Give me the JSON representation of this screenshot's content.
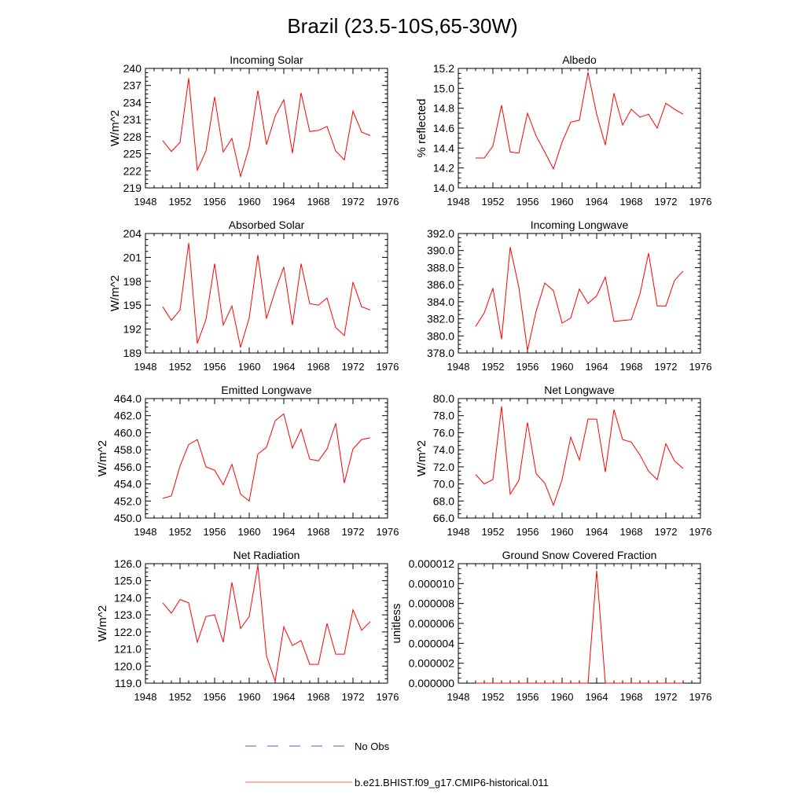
{
  "title": "Brazil (23.5-10S,65-30W)",
  "legend": {
    "obs_label": "No Obs",
    "model_label": "b.e21.BHIST.f09_g17.CMIP6-historical.011"
  },
  "colors": {
    "model": "#ff0000",
    "obs": "#5a5ac8"
  },
  "chart_data": [
    {
      "type": "line",
      "title": "Incoming Solar",
      "xlabel": "",
      "ylabel": "W/m^2",
      "xlim": [
        1948,
        1976
      ],
      "ylim": [
        219,
        240
      ],
      "xticks": [
        1948,
        1952,
        1956,
        1960,
        1964,
        1968,
        1972,
        1976
      ],
      "yticks": [
        219,
        222,
        225,
        228,
        231,
        234,
        237,
        240
      ],
      "ytick_labels": [
        "219",
        "222",
        "225",
        "228",
        "231",
        "234",
        "237",
        "240"
      ],
      "series": [
        {
          "name": "b.e21.BHIST.f09_g17.CMIP6-historical.011",
          "x": [
            1950,
            1951,
            1952,
            1953,
            1954,
            1955,
            1956,
            1957,
            1958,
            1959,
            1960,
            1961,
            1962,
            1963,
            1964,
            1965,
            1966,
            1967,
            1968,
            1969,
            1970,
            1971,
            1972,
            1973,
            1974
          ],
          "values": [
            227.3,
            225.4,
            227.0,
            238.3,
            222.1,
            225.5,
            235.0,
            225.3,
            227.7,
            221.0,
            226.2,
            236.1,
            226.6,
            231.6,
            234.5,
            225.1,
            235.7,
            228.9,
            229.1,
            229.8,
            225.5,
            223.9,
            232.5,
            228.8,
            228.2
          ]
        }
      ]
    },
    {
      "type": "line",
      "title": "Albedo",
      "xlabel": "",
      "ylabel": "% reflected",
      "xlim": [
        1948,
        1976
      ],
      "ylim": [
        14.0,
        15.2
      ],
      "xticks": [
        1948,
        1952,
        1956,
        1960,
        1964,
        1968,
        1972,
        1976
      ],
      "yticks": [
        14.0,
        14.2,
        14.4,
        14.6,
        14.8,
        15.0,
        15.2
      ],
      "ytick_labels": [
        "14.0",
        "14.2",
        "14.4",
        "14.6",
        "14.8",
        "15.0",
        "15.2"
      ],
      "series": [
        {
          "name": "b.e21.BHIST.f09_g17.CMIP6-historical.011",
          "x": [
            1950,
            1951,
            1952,
            1953,
            1954,
            1955,
            1956,
            1957,
            1958,
            1959,
            1960,
            1961,
            1962,
            1963,
            1964,
            1965,
            1966,
            1967,
            1968,
            1969,
            1970,
            1971,
            1972,
            1973,
            1974
          ],
          "values": [
            14.3,
            14.3,
            14.42,
            14.83,
            14.36,
            14.35,
            14.75,
            14.52,
            14.36,
            14.19,
            14.46,
            14.66,
            14.68,
            15.16,
            14.74,
            14.43,
            14.95,
            14.63,
            14.79,
            14.71,
            14.74,
            14.6,
            14.85,
            14.79,
            14.74
          ]
        }
      ]
    },
    {
      "type": "line",
      "title": "Absorbed Solar",
      "xlabel": "",
      "ylabel": "W/m^2",
      "xlim": [
        1948,
        1976
      ],
      "ylim": [
        189,
        204
      ],
      "xticks": [
        1948,
        1952,
        1956,
        1960,
        1964,
        1968,
        1972,
        1976
      ],
      "yticks": [
        189,
        192,
        195,
        198,
        201,
        204
      ],
      "ytick_labels": [
        "189",
        "192",
        "195",
        "198",
        "201",
        "204"
      ],
      "series": [
        {
          "name": "b.e21.BHIST.f09_g17.CMIP6-historical.011",
          "x": [
            1950,
            1951,
            1952,
            1953,
            1954,
            1955,
            1956,
            1957,
            1958,
            1959,
            1960,
            1961,
            1962,
            1963,
            1964,
            1965,
            1966,
            1967,
            1968,
            1969,
            1970,
            1971,
            1972,
            1973,
            1974
          ],
          "values": [
            194.8,
            193.1,
            194.4,
            202.8,
            190.2,
            193.2,
            200.2,
            192.5,
            194.9,
            189.7,
            193.4,
            201.3,
            193.3,
            196.8,
            199.8,
            192.5,
            200.2,
            195.2,
            195.0,
            195.9,
            192.2,
            191.2,
            197.9,
            194.8,
            194.4
          ]
        }
      ]
    },
    {
      "type": "line",
      "title": "Incoming Longwave",
      "xlabel": "",
      "ylabel": "",
      "xlim": [
        1948,
        1976
      ],
      "ylim": [
        378.0,
        392.0
      ],
      "xticks": [
        1948,
        1952,
        1956,
        1960,
        1964,
        1968,
        1972,
        1976
      ],
      "yticks": [
        378,
        380,
        382,
        384,
        386,
        388,
        390,
        392
      ],
      "ytick_labels": [
        "378.0",
        "380.0",
        "382.0",
        "384.0",
        "386.0",
        "388.0",
        "390.0",
        "392.0"
      ],
      "series": [
        {
          "name": "b.e21.BHIST.f09_g17.CMIP6-historical.011",
          "x": [
            1950,
            1951,
            1952,
            1953,
            1954,
            1955,
            1956,
            1957,
            1958,
            1959,
            1960,
            1961,
            1962,
            1963,
            1964,
            1965,
            1966,
            1967,
            1968,
            1969,
            1970,
            1971,
            1972,
            1973,
            1974
          ],
          "values": [
            381.1,
            382.7,
            385.6,
            379.6,
            390.4,
            385.7,
            378.3,
            382.9,
            386.2,
            385.3,
            381.5,
            382.1,
            385.5,
            383.8,
            384.7,
            386.9,
            381.7,
            381.8,
            381.9,
            384.9,
            389.7,
            383.5,
            383.5,
            386.5,
            387.6
          ]
        }
      ]
    },
    {
      "type": "line",
      "title": "Emitted Longwave",
      "xlabel": "",
      "ylabel": "W/m^2",
      "xlim": [
        1948,
        1976
      ],
      "ylim": [
        450.0,
        464.0
      ],
      "xticks": [
        1948,
        1952,
        1956,
        1960,
        1964,
        1968,
        1972,
        1976
      ],
      "yticks": [
        450,
        452,
        454,
        456,
        458,
        460,
        462,
        464
      ],
      "ytick_labels": [
        "450.0",
        "452.0",
        "454.0",
        "456.0",
        "458.0",
        "460.0",
        "462.0",
        "464.0"
      ],
      "series": [
        {
          "name": "b.e21.BHIST.f09_g17.CMIP6-historical.011",
          "x": [
            1950,
            1951,
            1952,
            1953,
            1954,
            1955,
            1956,
            1957,
            1958,
            1959,
            1960,
            1961,
            1962,
            1963,
            1964,
            1965,
            1966,
            1967,
            1968,
            1969,
            1970,
            1971,
            1972,
            1973,
            1974
          ],
          "values": [
            452.3,
            452.6,
            456.1,
            458.6,
            459.2,
            456.0,
            455.6,
            453.9,
            456.3,
            452.8,
            452.0,
            457.5,
            458.3,
            461.4,
            462.2,
            458.2,
            460.4,
            456.9,
            456.7,
            458.1,
            461.1,
            454.1,
            458.1,
            459.2,
            459.4
          ]
        }
      ]
    },
    {
      "type": "line",
      "title": "Net Longwave",
      "xlabel": "",
      "ylabel": "W/m^2",
      "xlim": [
        1948,
        1976
      ],
      "ylim": [
        66.0,
        80.0
      ],
      "xticks": [
        1948,
        1952,
        1956,
        1960,
        1964,
        1968,
        1972,
        1976
      ],
      "yticks": [
        66,
        68,
        70,
        72,
        74,
        76,
        78,
        80
      ],
      "ytick_labels": [
        "66.0",
        "68.0",
        "70.0",
        "72.0",
        "74.0",
        "76.0",
        "78.0",
        "80.0"
      ],
      "series": [
        {
          "name": "b.e21.BHIST.f09_g17.CMIP6-historical.011",
          "x": [
            1950,
            1951,
            1952,
            1953,
            1954,
            1955,
            1956,
            1957,
            1958,
            1959,
            1960,
            1961,
            1962,
            1963,
            1964,
            1965,
            1966,
            1967,
            1968,
            1969,
            1970,
            1971,
            1972,
            1973,
            1974
          ],
          "values": [
            71.1,
            70.0,
            70.5,
            79.1,
            68.8,
            70.4,
            77.2,
            71.2,
            70.1,
            67.5,
            70.5,
            75.5,
            72.8,
            77.6,
            77.6,
            71.4,
            78.7,
            75.2,
            74.9,
            73.4,
            71.5,
            70.5,
            74.7,
            72.7,
            71.8
          ]
        }
      ]
    },
    {
      "type": "line",
      "title": "Net Radiation",
      "xlabel": "",
      "ylabel": "W/m^2",
      "xlim": [
        1948,
        1976
      ],
      "ylim": [
        119.0,
        126.0
      ],
      "xticks": [
        1948,
        1952,
        1956,
        1960,
        1964,
        1968,
        1972,
        1976
      ],
      "yticks": [
        119,
        120,
        121,
        122,
        123,
        124,
        125,
        126
      ],
      "ytick_labels": [
        "119.0",
        "120.0",
        "121.0",
        "122.0",
        "123.0",
        "124.0",
        "125.0",
        "126.0"
      ],
      "series": [
        {
          "name": "b.e21.BHIST.f09_g17.CMIP6-historical.011",
          "x": [
            1950,
            1951,
            1952,
            1953,
            1954,
            1955,
            1956,
            1957,
            1958,
            1959,
            1960,
            1961,
            1962,
            1963,
            1964,
            1965,
            1966,
            1967,
            1968,
            1969,
            1970,
            1971,
            1972,
            1973,
            1974
          ],
          "values": [
            123.7,
            123.1,
            123.9,
            123.7,
            121.4,
            122.9,
            123.0,
            121.4,
            124.9,
            122.2,
            122.9,
            125.9,
            120.6,
            119.1,
            122.3,
            121.2,
            121.5,
            120.1,
            120.1,
            122.5,
            120.7,
            120.7,
            123.3,
            122.1,
            122.6
          ]
        }
      ]
    },
    {
      "type": "line",
      "title": "Ground Snow Covered Fraction",
      "xlabel": "",
      "ylabel": "unitless",
      "xlim": [
        1948,
        1976
      ],
      "ylim": [
        0,
        1.2e-05
      ],
      "xticks": [
        1948,
        1952,
        1956,
        1960,
        1964,
        1968,
        1972,
        1976
      ],
      "yticks": [
        0,
        2e-06,
        4e-06,
        6e-06,
        8e-06,
        1e-05,
        1.2e-05
      ],
      "ytick_labels": [
        "0.000000",
        "0.000002",
        "0.000004",
        "0.000006",
        "0.000008",
        "0.000010",
        "0.000012"
      ],
      "series": [
        {
          "name": "b.e21.BHIST.f09_g17.CMIP6-historical.011",
          "x": [
            1950,
            1951,
            1952,
            1953,
            1954,
            1955,
            1956,
            1957,
            1958,
            1959,
            1960,
            1961,
            1962,
            1963,
            1964,
            1965,
            1966,
            1967,
            1968,
            1969,
            1970,
            1971,
            1972,
            1973,
            1974
          ],
          "values": [
            0,
            0,
            0,
            0,
            0,
            0,
            0,
            0,
            0,
            0,
            0,
            0,
            0,
            0,
            1.13e-05,
            0,
            0,
            0,
            0,
            0,
            0,
            0,
            0,
            0,
            0
          ]
        }
      ]
    }
  ]
}
